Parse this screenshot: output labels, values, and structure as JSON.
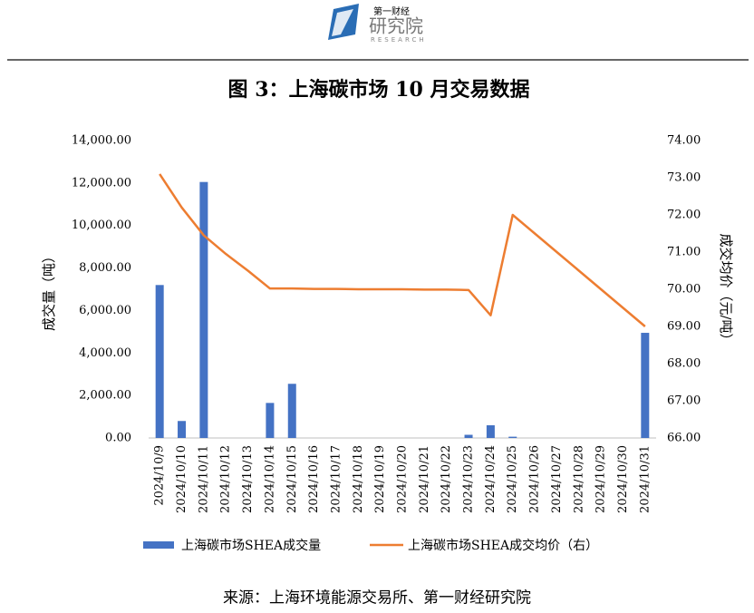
{
  "header": {
    "logo_top": "第一财经",
    "logo_main": "研究院",
    "logo_sub": "RESEARCH"
  },
  "chart_data": {
    "type": "bar",
    "title": "图 3：上海碳市场 10 月交易数据",
    "y_label": "成交量（吨）",
    "y2_label": "成交均价（元/吨）",
    "categories": [
      "2024/10/9",
      "2024/10/10",
      "2024/10/11",
      "2024/10/12",
      "2024/10/13",
      "2024/10/14",
      "2024/10/15",
      "2024/10/16",
      "2024/10/17",
      "2024/10/18",
      "2024/10/19",
      "2024/10/20",
      "2024/10/21",
      "2024/10/22",
      "2024/10/23",
      "2024/10/24",
      "2024/10/25",
      "2024/10/26",
      "2024/10/27",
      "2024/10/28",
      "2024/10/29",
      "2024/10/30",
      "2024/10/31"
    ],
    "series": [
      {
        "name": "上海碳市场SHEA成交量",
        "type": "bar",
        "color": "#4472c4",
        "values": [
          7200,
          800,
          12050,
          0,
          0,
          1650,
          2550,
          0,
          0,
          0,
          0,
          0,
          0,
          0,
          150,
          600,
          60,
          0,
          0,
          0,
          0,
          0,
          4950
        ]
      },
      {
        "name": "上海碳市场SHEA成交均价（右）",
        "type": "line",
        "axis": "y2",
        "color": "#ed7d31",
        "values": [
          73.1,
          72.2,
          71.45,
          70.95,
          70.5,
          70.02,
          70.02,
          70.01,
          70.01,
          70.0,
          70.0,
          70.0,
          69.99,
          69.99,
          69.98,
          69.3,
          72.0,
          71.5,
          71.0,
          70.5,
          70.0,
          69.5,
          69.0
        ]
      }
    ],
    "ylim": [
      0,
      14000
    ],
    "yticks": [
      {
        "value": 0,
        "label": "0.00"
      },
      {
        "value": 2000,
        "label": "2,000.00"
      },
      {
        "value": 4000,
        "label": "4,000.00"
      },
      {
        "value": 6000,
        "label": "6,000.00"
      },
      {
        "value": 8000,
        "label": "8,000.00"
      },
      {
        "value": 10000,
        "label": "10,000.00"
      },
      {
        "value": 12000,
        "label": "12,000.00"
      },
      {
        "value": 14000,
        "label": "14,000.00"
      }
    ],
    "y2lim": [
      66,
      74
    ],
    "y2ticks": [
      {
        "value": 66,
        "label": "66.00"
      },
      {
        "value": 67,
        "label": "67.00"
      },
      {
        "value": 68,
        "label": "68.00"
      },
      {
        "value": 69,
        "label": "69.00"
      },
      {
        "value": 70,
        "label": "70.00"
      },
      {
        "value": 71,
        "label": "71.00"
      },
      {
        "value": 72,
        "label": "72.00"
      },
      {
        "value": 73,
        "label": "73.00"
      },
      {
        "value": 74,
        "label": "74.00"
      }
    ],
    "legend": "bottom"
  },
  "source": "来源：上海环境能源交易所、第一财经研究院"
}
